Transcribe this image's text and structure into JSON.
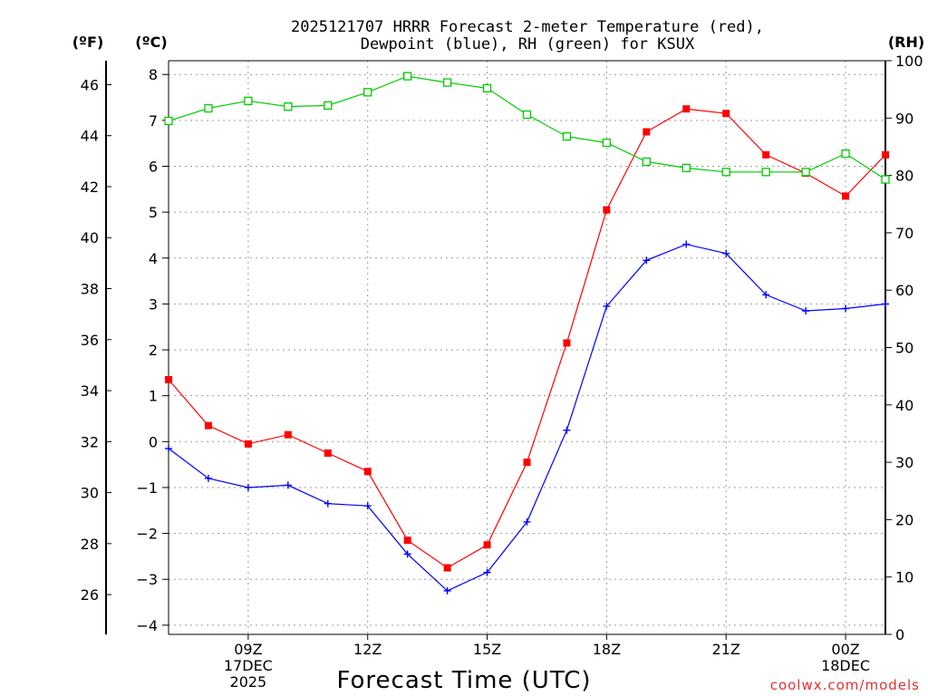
{
  "chart_data": {
    "type": "line",
    "title_line1": "2025121707 HRRR Forecast 2-meter Temperature (red),",
    "title_line2": "Dewpoint (blue), RH (green) for KSUX",
    "xlabel": "Forecast Time (UTC)",
    "units": {
      "fahrenheit": "(ºF)",
      "celsius": "(ºC)",
      "rh": "(RH)"
    },
    "credit": "coolwx.com/models",
    "x": [
      7,
      8,
      9,
      10,
      11,
      12,
      13,
      14,
      15,
      16,
      17,
      18,
      19,
      20,
      21,
      22,
      23,
      24,
      25
    ],
    "xlim": [
      7,
      25
    ],
    "x_ticks": [
      {
        "x": 9,
        "lines": [
          "09Z",
          "17DEC",
          "2025"
        ]
      },
      {
        "x": 12,
        "lines": [
          "12Z"
        ]
      },
      {
        "x": 15,
        "lines": [
          "15Z"
        ]
      },
      {
        "x": 18,
        "lines": [
          "18Z"
        ]
      },
      {
        "x": 21,
        "lines": [
          "21Z"
        ]
      },
      {
        "x": 24,
        "lines": [
          "00Z",
          "18DEC"
        ]
      }
    ],
    "celsius_axis": {
      "ylim": [
        -4.2,
        8.3
      ],
      "ticks": [
        -4,
        -3,
        -2,
        -1,
        0,
        1,
        2,
        3,
        4,
        5,
        6,
        7,
        8
      ]
    },
    "fahrenheit_axis": {
      "ticks": [
        26,
        28,
        30,
        32,
        34,
        36,
        38,
        40,
        42,
        44,
        46
      ]
    },
    "rh_axis": {
      "ylim": [
        0,
        100
      ],
      "ticks": [
        0,
        10,
        20,
        30,
        40,
        50,
        60,
        70,
        80,
        90,
        100
      ]
    },
    "series": [
      {
        "name": "Temperature",
        "axis": "celsius",
        "color": "#ff0000",
        "marker": "filled-square",
        "values": [
          1.35,
          0.35,
          -0.05,
          0.15,
          -0.25,
          -0.65,
          -2.15,
          -2.75,
          -2.25,
          -0.45,
          2.15,
          5.05,
          6.75,
          7.25,
          7.15,
          6.25,
          5.85,
          5.35,
          6.25
        ]
      },
      {
        "name": "Dewpoint",
        "axis": "celsius",
        "color": "#0000ff",
        "marker": "plus",
        "values": [
          -0.15,
          -0.8,
          -1.0,
          -0.95,
          -1.35,
          -1.4,
          -2.45,
          -3.25,
          -2.85,
          -1.75,
          0.25,
          2.95,
          3.95,
          4.3,
          4.1,
          3.2,
          2.85,
          2.9,
          3.0
        ]
      },
      {
        "name": "RH",
        "axis": "rh",
        "color": "#00cc00",
        "marker": "open-square",
        "values": [
          89.5,
          91.7,
          93.0,
          92.0,
          92.2,
          94.5,
          97.3,
          96.2,
          95.2,
          90.6,
          86.8,
          85.7,
          82.4,
          81.3,
          80.6,
          80.6,
          80.6,
          83.8,
          79.3
        ]
      }
    ]
  }
}
